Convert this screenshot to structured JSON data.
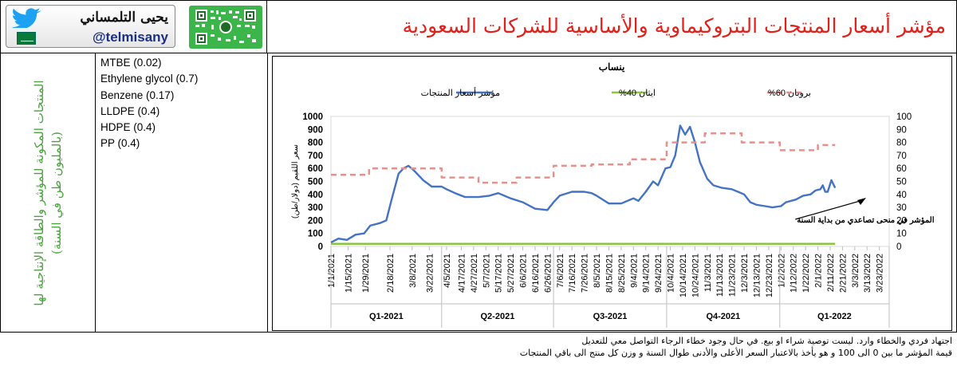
{
  "header": {
    "title": "مؤشر أسعار المنتجات البتروكيماوية والأساسية للشركات السعودية",
    "author_ar": "يحيى التلمساني",
    "author_handle": "@telmisany",
    "icons": [
      "twitter-bird-icon",
      "saudi-flag-icon",
      "qr-code-icon"
    ]
  },
  "sidebar": {
    "vertical_text": "المنتجات المكونة للمؤشر والطاقة الإنتاجية لها (بالمليون طن في السنة)",
    "components": [
      "MTBE (0.02)",
      "Ethylene glycol (0.7)",
      "Benzene (0.17)",
      "LLDPE (0.4)",
      "HDPE (0.4)",
      "PP (0.4)"
    ]
  },
  "notes": [
    "اجتهاد فردي والخطاء وارد. ليست توصية شراء او بيع. في حال وجود خطاء الرجاء التواصل معي للتعديل",
    "قيمة المؤشر ما بين 0 الى 100 و هو يأخذ بالاعتبار السعر الأعلى والأدنى طوال السنة و وزن كل منتج الى باقي المنتجات"
  ],
  "chart_data": {
    "type": "line",
    "title": "ينساب",
    "ylabel_left": "سعر اللقيم (دولار/طن)",
    "ylim_left": [
      0,
      1000
    ],
    "yticks_left": [
      0,
      100,
      200,
      300,
      400,
      500,
      600,
      700,
      800,
      900,
      1000
    ],
    "ylim_right": [
      0,
      100
    ],
    "yticks_right": [
      0,
      10,
      20,
      30,
      40,
      50,
      60,
      70,
      80,
      90,
      100
    ],
    "legend_position": "top",
    "x_start": "2021-01-01",
    "x_end": "2022-03-31",
    "xticks": [
      "1/1/2021",
      "1/15/2021",
      "1/29/2021",
      "2/18/2021",
      "3/8/2021",
      "3/22/2021",
      "4/5/2021",
      "4/17/2021",
      "4/27/2021",
      "5/7/2021",
      "5/17/2021",
      "5/27/2021",
      "6/6/2021",
      "6/16/2021",
      "6/26/2021",
      "7/6/2021",
      "7/16/2021",
      "7/26/2021",
      "8/5/2021",
      "8/15/2021",
      "8/25/2021",
      "9/4/2021",
      "9/14/2021",
      "9/24/2021",
      "10/4/2021",
      "10/14/2021",
      "10/24/2021",
      "11/3/2021",
      "11/13/2021",
      "11/23/2021",
      "12/3/2021",
      "12/13/2021",
      "12/23/2021",
      "1/2/2022",
      "1/12/2022",
      "1/22/2022",
      "2/1/2022",
      "2/11/2022",
      "2/21/2022",
      "3/3/2022",
      "3/13/2022",
      "3/23/2022"
    ],
    "quarters": [
      "Q1-2021",
      "Q2-2021",
      "Q3-2021",
      "Q4-2021",
      "Q1-2022"
    ],
    "annotation": "المؤشر في منحى تصاعدي من بداية السنة",
    "grid": false,
    "series": [
      {
        "name": "مؤشر أسعار المنتجات",
        "axis": "left",
        "color": "#4472c4",
        "style": "solid",
        "points": [
          [
            "2021-01-01",
            30
          ],
          [
            "2021-01-07",
            60
          ],
          [
            "2021-01-14",
            50
          ],
          [
            "2021-01-21",
            90
          ],
          [
            "2021-01-28",
            100
          ],
          [
            "2021-02-02",
            160
          ],
          [
            "2021-02-10",
            180
          ],
          [
            "2021-02-15",
            200
          ],
          [
            "2021-02-19",
            350
          ],
          [
            "2021-02-25",
            560
          ],
          [
            "2021-03-01",
            600
          ],
          [
            "2021-03-05",
            620
          ],
          [
            "2021-03-10",
            580
          ],
          [
            "2021-03-17",
            510
          ],
          [
            "2021-03-24",
            460
          ],
          [
            "2021-04-01",
            460
          ],
          [
            "2021-04-05",
            440
          ],
          [
            "2021-04-12",
            410
          ],
          [
            "2021-04-20",
            380
          ],
          [
            "2021-05-01",
            380
          ],
          [
            "2021-05-10",
            390
          ],
          [
            "2021-05-17",
            410
          ],
          [
            "2021-05-27",
            370
          ],
          [
            "2021-06-06",
            340
          ],
          [
            "2021-06-16",
            290
          ],
          [
            "2021-06-26",
            280
          ],
          [
            "2021-07-01",
            340
          ],
          [
            "2021-07-06",
            390
          ],
          [
            "2021-07-16",
            420
          ],
          [
            "2021-07-26",
            420
          ],
          [
            "2021-08-01",
            410
          ],
          [
            "2021-08-05",
            390
          ],
          [
            "2021-08-15",
            330
          ],
          [
            "2021-08-25",
            330
          ],
          [
            "2021-09-04",
            370
          ],
          [
            "2021-09-08",
            350
          ],
          [
            "2021-09-14",
            420
          ],
          [
            "2021-09-20",
            500
          ],
          [
            "2021-09-24",
            470
          ],
          [
            "2021-09-30",
            600
          ],
          [
            "2021-10-04",
            610
          ],
          [
            "2021-10-08",
            700
          ],
          [
            "2021-10-12",
            930
          ],
          [
            "2021-10-16",
            860
          ],
          [
            "2021-10-20",
            920
          ],
          [
            "2021-10-24",
            800
          ],
          [
            "2021-10-28",
            650
          ],
          [
            "2021-11-03",
            520
          ],
          [
            "2021-11-08",
            470
          ],
          [
            "2021-11-15",
            450
          ],
          [
            "2021-11-23",
            440
          ],
          [
            "2021-11-28",
            420
          ],
          [
            "2021-12-03",
            400
          ],
          [
            "2021-12-08",
            340
          ],
          [
            "2021-12-13",
            320
          ],
          [
            "2021-12-20",
            310
          ],
          [
            "2021-12-26",
            300
          ],
          [
            "2022-01-02",
            310
          ],
          [
            "2022-01-06",
            340
          ],
          [
            "2022-01-14",
            360
          ],
          [
            "2022-01-20",
            390
          ],
          [
            "2022-01-26",
            400
          ],
          [
            "2022-01-30",
            430
          ],
          [
            "2022-02-03",
            440
          ],
          [
            "2022-02-05",
            470
          ],
          [
            "2022-02-07",
            420
          ],
          [
            "2022-02-09",
            420
          ],
          [
            "2022-02-12",
            510
          ],
          [
            "2022-02-15",
            450
          ]
        ]
      },
      {
        "name": "ايثان 40%",
        "axis": "right",
        "color": "#8cc63f",
        "style": "solid",
        "points": [
          [
            "2021-01-01",
            2
          ],
          [
            "2022-02-15",
            2
          ]
        ]
      },
      {
        "name": "بروبان 60%",
        "axis": "right",
        "color": "#e8908c",
        "style": "dashed",
        "points": [
          [
            "2021-01-01",
            55
          ],
          [
            "2021-02-01",
            55
          ],
          [
            "2021-02-01",
            60
          ],
          [
            "2021-04-01",
            60
          ],
          [
            "2021-04-01",
            53
          ],
          [
            "2021-05-01",
            53
          ],
          [
            "2021-05-01",
            49
          ],
          [
            "2021-06-01",
            49
          ],
          [
            "2021-06-01",
            53
          ],
          [
            "2021-07-01",
            53
          ],
          [
            "2021-07-01",
            62
          ],
          [
            "2021-08-01",
            62
          ],
          [
            "2021-08-01",
            63
          ],
          [
            "2021-09-01",
            63
          ],
          [
            "2021-09-01",
            67
          ],
          [
            "2021-10-01",
            67
          ],
          [
            "2021-10-01",
            80
          ],
          [
            "2021-11-01",
            80
          ],
          [
            "2021-11-01",
            87
          ],
          [
            "2021-12-01",
            87
          ],
          [
            "2021-12-01",
            80
          ],
          [
            "2022-01-01",
            80
          ],
          [
            "2022-01-01",
            74
          ],
          [
            "2022-02-01",
            74
          ],
          [
            "2022-02-01",
            78
          ],
          [
            "2022-02-15",
            78
          ]
        ]
      }
    ]
  }
}
